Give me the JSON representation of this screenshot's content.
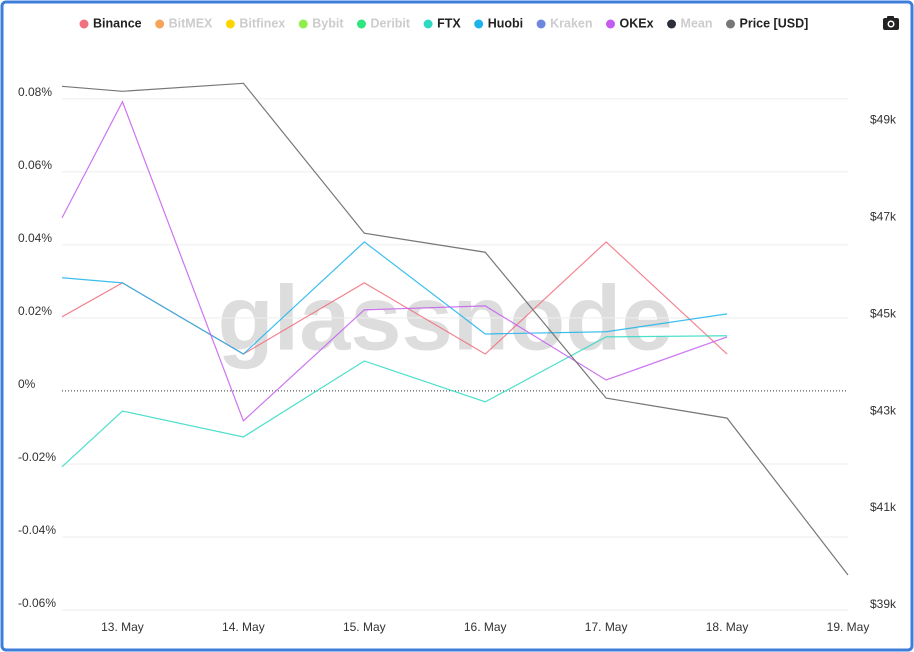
{
  "chart_data": {
    "type": "line",
    "watermark": "glassnode",
    "categories": [
      null,
      "13. May",
      "14. May",
      "15. May",
      "16. May",
      "17. May",
      "18. May",
      "19. May"
    ],
    "series": [
      {
        "name": "Binance",
        "color": "#f0707f",
        "visible": true,
        "values": [
          0.0203,
          0.0296,
          0.0101,
          0.0296,
          0.0101,
          0.0408,
          0.0101,
          null
        ]
      },
      {
        "name": "BitMEX",
        "color": "#f7a35c",
        "visible": false,
        "values": [
          null,
          null,
          null,
          null,
          null,
          null,
          null,
          null
        ]
      },
      {
        "name": "Bitfinex",
        "color": "#ffd500",
        "visible": false,
        "values": [
          null,
          null,
          null,
          null,
          null,
          null,
          null,
          null
        ]
      },
      {
        "name": "Bybit",
        "color": "#90ed4d",
        "visible": false,
        "values": [
          null,
          null,
          null,
          null,
          null,
          null,
          null,
          null
        ]
      },
      {
        "name": "Deribit",
        "color": "#2ee67f",
        "visible": false,
        "values": [
          null,
          null,
          null,
          null,
          null,
          null,
          null,
          null
        ]
      },
      {
        "name": "FTX",
        "color": "#2ed9c3",
        "visible": true,
        "values": [
          -0.0208,
          -0.0055,
          -0.0126,
          0.0082,
          -0.003,
          0.0148,
          0.0151,
          null
        ]
      },
      {
        "name": "Huobi",
        "color": "#1ab3ec",
        "visible": true,
        "values": [
          0.031,
          0.0296,
          0.0101,
          0.0408,
          0.0156,
          0.0162,
          0.0211,
          null
        ]
      },
      {
        "name": "Kraken",
        "color": "#6f86e0",
        "visible": false,
        "values": [
          null,
          null,
          null,
          null,
          null,
          null,
          null,
          null
        ]
      },
      {
        "name": "OKEx",
        "color": "#c45cf0",
        "visible": true,
        "values": [
          0.0474,
          0.0792,
          -0.0082,
          0.0222,
          0.0233,
          0.003,
          0.0148,
          null
        ]
      },
      {
        "name": "Mean",
        "color": "#2b2f3a",
        "visible": false,
        "values": [
          null,
          null,
          null,
          null,
          null,
          null,
          null,
          null
        ]
      },
      {
        "name": "Price [USD]",
        "color": "#777777",
        "visible": true,
        "axis": "y2",
        "values": [
          49804,
          49701,
          49866,
          46773,
          46381,
          43371,
          42959,
          39722
        ]
      }
    ],
    "ylim": [
      -0.06,
      0.092
    ],
    "yticks": [
      {
        "value": -0.06,
        "label": "-0.06%"
      },
      {
        "value": -0.04,
        "label": "-0.04%"
      },
      {
        "value": -0.02,
        "label": "-0.02%"
      },
      {
        "value": 0,
        "label": "0%"
      },
      {
        "value": 0.02,
        "label": "0.02%"
      },
      {
        "value": 0.04,
        "label": "0.04%"
      },
      {
        "value": 0.06,
        "label": "0.06%"
      },
      {
        "value": 0.08,
        "label": "0.08%"
      }
    ],
    "y2lim": [
      39000,
      50450
    ],
    "y2ticks": [
      {
        "value": 39000,
        "label": "$39k"
      },
      {
        "value": 41000,
        "label": "$41k"
      },
      {
        "value": 43000,
        "label": "$43k"
      },
      {
        "value": 45000,
        "label": "$45k"
      },
      {
        "value": 47000,
        "label": "$47k"
      },
      {
        "value": 49000,
        "label": "$49k"
      }
    ],
    "grid": true
  }
}
